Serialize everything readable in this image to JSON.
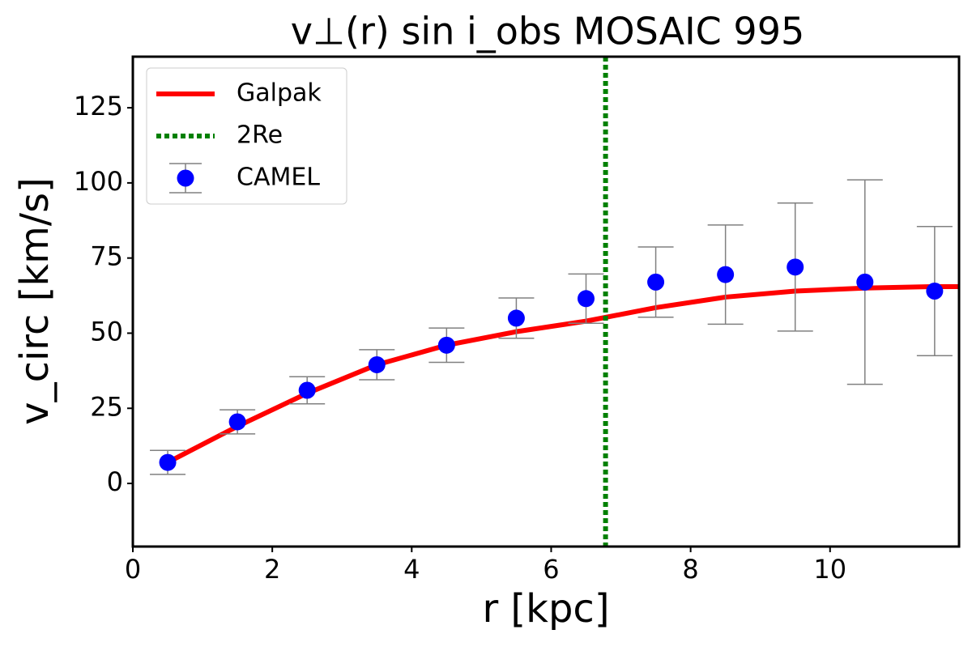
{
  "chart_data": {
    "type": "errorbar-line",
    "title": "v⊥(r) sin i_obs MOSAIC 995",
    "xlabel": "r [kpc]",
    "ylabel": "v_circ [km/s]",
    "xlim": [
      0,
      11.85
    ],
    "ylim": [
      -21,
      142
    ],
    "xticks": [
      0,
      2,
      4,
      6,
      8,
      10
    ],
    "yticks": [
      0,
      25,
      50,
      75,
      100,
      125
    ],
    "legend": "upper left",
    "series": [
      {
        "name": "Galpak",
        "kind": "line",
        "color": "#ff0000",
        "x": [
          0.5,
          1.5,
          2.5,
          3.5,
          4.5,
          5.5,
          6.5,
          7.5,
          8.5,
          9.5,
          10.5,
          11.5,
          11.85
        ],
        "values": [
          7,
          19,
          30,
          39.5,
          46,
          50.5,
          54,
          58.5,
          62,
          64,
          65,
          65.5,
          65.5
        ]
      },
      {
        "name": "2Re",
        "kind": "vline",
        "color": "#008000",
        "x": 6.78
      },
      {
        "name": "CAMEL",
        "kind": "errorbar",
        "color": "#0000ff",
        "error_color": "#808080",
        "x": [
          0.5,
          1.5,
          2.5,
          3.5,
          4.5,
          5.5,
          6.5,
          7.5,
          8.5,
          9.5,
          10.5,
          11.5
        ],
        "values": [
          7,
          20.5,
          31,
          39.5,
          46,
          55,
          61.5,
          67,
          69.5,
          72,
          67,
          64
        ],
        "errors": [
          4,
          4,
          4.5,
          5,
          5.7,
          6.7,
          8.2,
          11.7,
          16.5,
          21.3,
          34,
          21.5
        ]
      }
    ]
  }
}
